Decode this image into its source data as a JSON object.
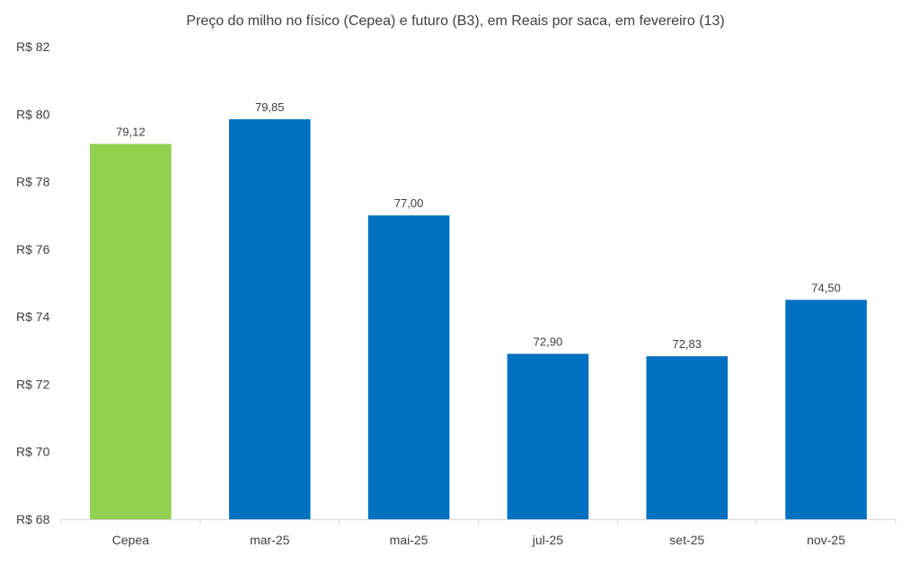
{
  "chart_data": {
    "type": "bar",
    "title": "Preço do milho no físico (Cepea) e futuro (B3), em Reais por saca, em fevereiro (13)",
    "xlabel": "",
    "ylabel": "",
    "categories": [
      "Cepea",
      "mar-25",
      "mai-25",
      "jul-25",
      "set-25",
      "nov-25"
    ],
    "values": [
      79.12,
      79.85,
      77.0,
      72.9,
      72.83,
      74.5
    ],
    "data_labels": [
      "79,12",
      "79,85",
      "77,00",
      "72,90",
      "72,83",
      "74,50"
    ],
    "ylim": [
      68,
      82
    ],
    "yticks": [
      68,
      70,
      72,
      74,
      76,
      78,
      80,
      82
    ],
    "ytick_labels": [
      "R$ 68",
      "R$ 70",
      "R$ 72",
      "R$ 74",
      "R$ 76",
      "R$ 78",
      "R$ 80",
      "R$ 82"
    ],
    "colors": [
      "#92d050",
      "#0070c0",
      "#0070c0",
      "#0070c0",
      "#0070c0",
      "#0070c0"
    ],
    "axis_color": "#d9d9d9",
    "grid": false,
    "legend": "none"
  }
}
